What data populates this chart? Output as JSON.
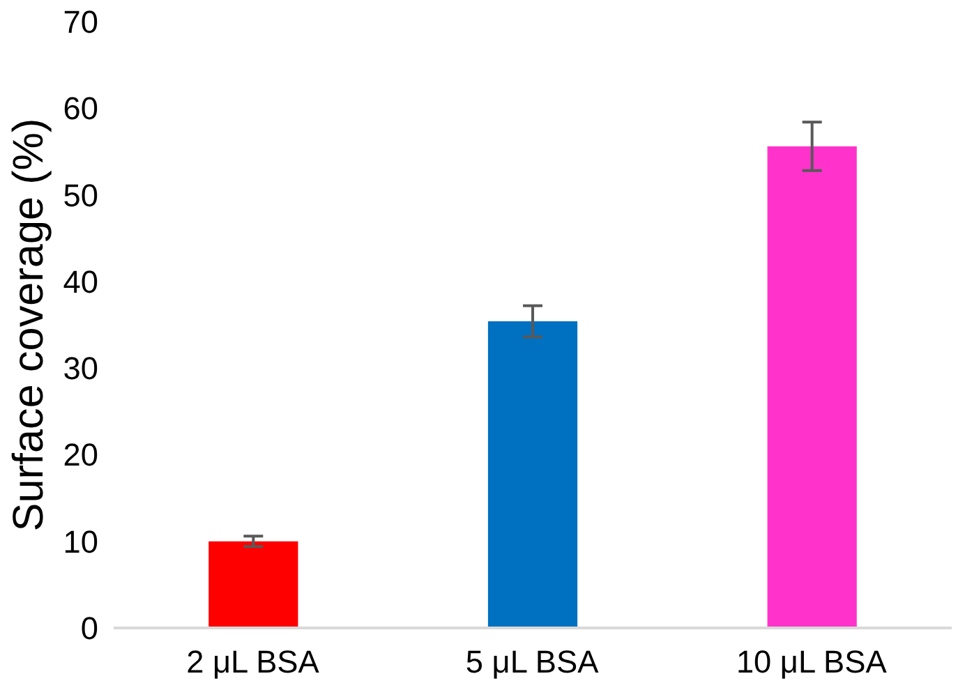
{
  "chart_data": {
    "type": "bar",
    "ylabel": "Surface coverage (%)",
    "categories": [
      "2 μL BSA",
      "5 μL BSA",
      "10 μL BSA"
    ],
    "values": [
      10.0,
      35.4,
      55.6
    ],
    "colors": [
      "#ff0000",
      "#0070c0",
      "#ff33cc"
    ],
    "errors": [
      0.6,
      1.8,
      2.8
    ],
    "ylim": [
      0,
      70
    ],
    "yticks": [
      0,
      10,
      20,
      30,
      40,
      50,
      60,
      70
    ],
    "grid": false
  }
}
